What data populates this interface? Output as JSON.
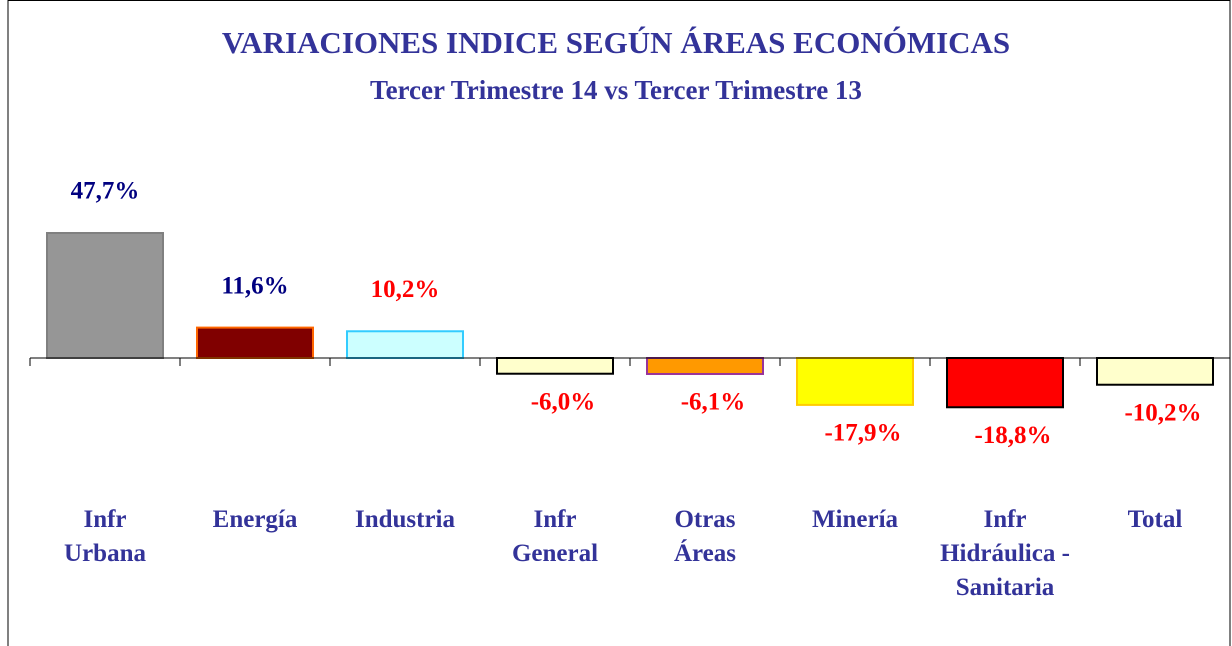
{
  "chart_data": {
    "type": "bar",
    "title": "VARIACIONES INDICE SEGÚN ÁREAS ECONÓMICAS",
    "subtitle": "Tercer Trimestre 14 vs  Tercer Trimestre 13",
    "categories": [
      "Infr\nUrbana",
      "Energía",
      "Industria",
      "Infr\nGeneral",
      "Otras\nÁreas",
      "Minería",
      "Infr\nHidráulica -\nSanitaria",
      "Total"
    ],
    "values": [
      47.7,
      11.6,
      10.2,
      -6.0,
      -6.1,
      -17.9,
      -18.8,
      -10.2
    ],
    "value_labels": [
      "47,7%",
      "11,6%",
      "10,2%",
      "-6,0%",
      "-6,1%",
      "-17,9%",
      "-18,8%",
      "-10,2%"
    ],
    "colors": [
      "#969696",
      "#800000",
      "#ccffff",
      "#ffffcc",
      "#ff9900",
      "#ffff00",
      "#ff0000",
      "#ffffcc"
    ],
    "border_colors": [
      "#808080",
      "#ff6600",
      "#33ccff",
      "#000000",
      "#993399",
      "#ffcc00",
      "#000000",
      "#000000"
    ],
    "label_colors": [
      "#000080",
      "#000080",
      "#ff0000",
      "#ff0000",
      "#ff0000",
      "#ff0000",
      "#ff0000",
      "#ff0000"
    ]
  }
}
